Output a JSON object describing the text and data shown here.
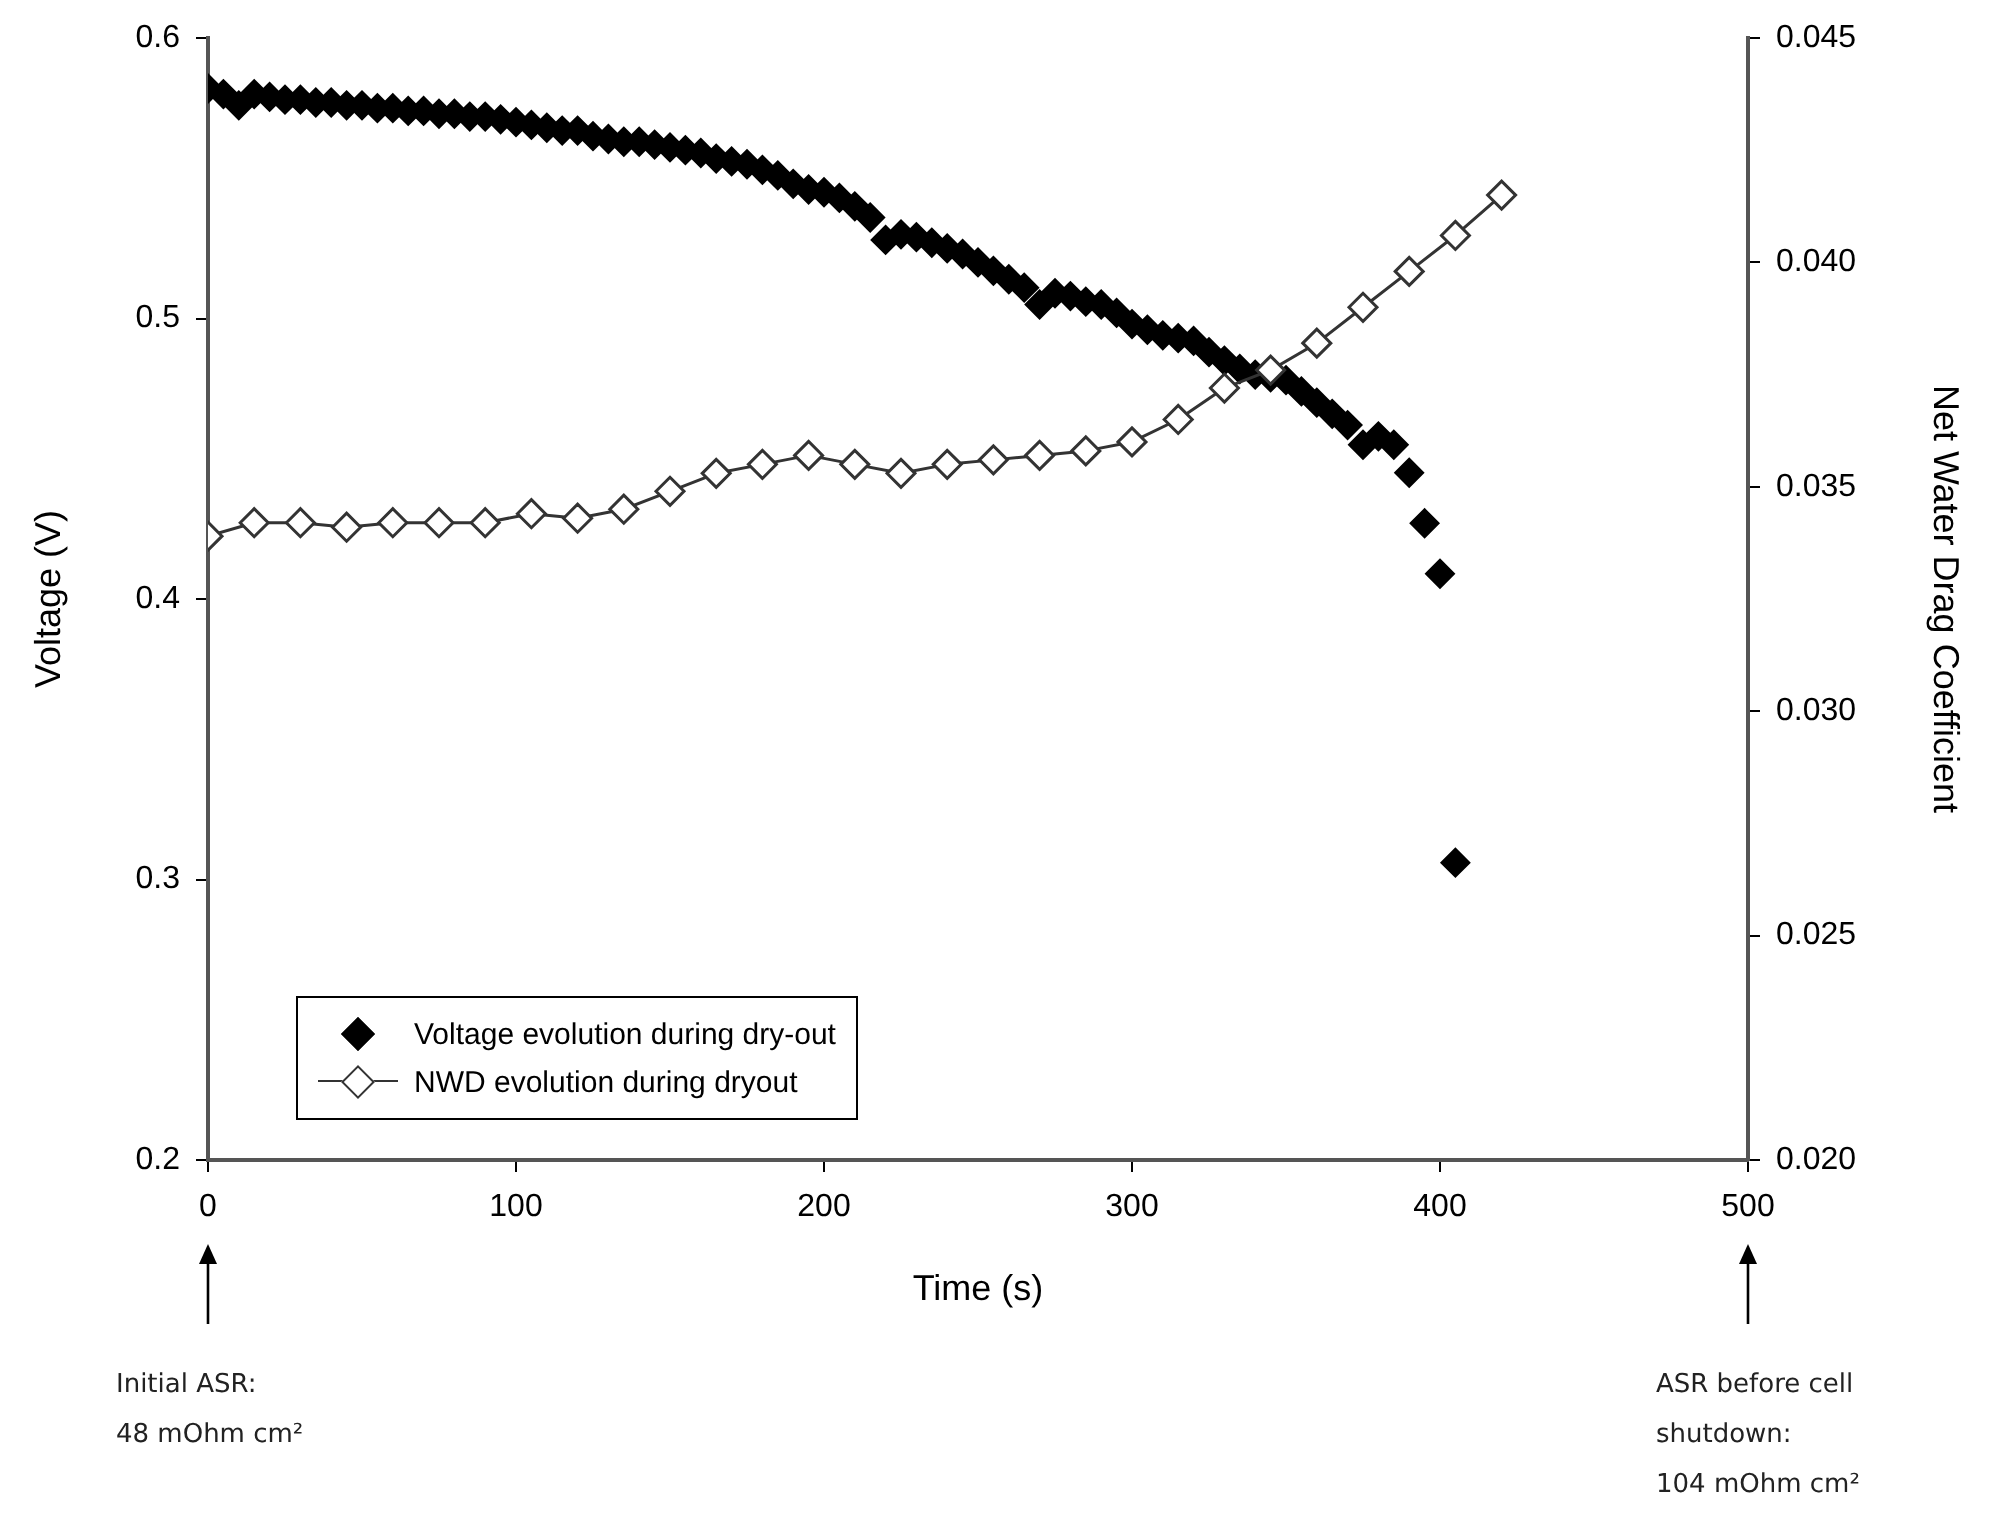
{
  "chart_data": {
    "type": "scatter",
    "xlabel": "Time (s)",
    "ylabel": "Voltage (V)",
    "y2label": "Net Water Drag Coefficient",
    "xlim": [
      0,
      500
    ],
    "xticks": [
      0,
      100,
      200,
      300,
      400,
      500
    ],
    "ylim": [
      0.2,
      0.6
    ],
    "yticks": [
      0.2,
      0.3,
      0.4,
      0.5,
      0.6
    ],
    "y2lim": [
      0.02,
      0.045
    ],
    "y2ticks": [
      {
        "value": 0.02,
        "label": "0.020"
      },
      {
        "value": 0.025,
        "label": "0.025"
      },
      {
        "value": 0.03,
        "label": "0.030"
      },
      {
        "value": 0.035,
        "label": "0.035"
      },
      {
        "value": 0.04,
        "label": "0.040"
      },
      {
        "value": 0.045,
        "label": "0.045"
      }
    ],
    "grid": false,
    "legend": "bottom left",
    "marker": "diamond",
    "series": [
      {
        "name": "Voltage evolution during dry-out",
        "type": "scatter",
        "color": "#000000",
        "x": [
          0,
          5,
          10,
          15,
          20,
          25,
          30,
          35,
          40,
          45,
          50,
          55,
          60,
          65,
          70,
          75,
          80,
          85,
          90,
          95,
          100,
          105,
          110,
          115,
          120,
          125,
          130,
          135,
          140,
          145,
          150,
          155,
          160,
          165,
          170,
          175,
          180,
          185,
          190,
          195,
          200,
          205,
          210,
          215,
          220,
          225,
          230,
          235,
          240,
          245,
          250,
          255,
          260,
          265,
          270,
          275,
          280,
          285,
          290,
          295,
          300,
          305,
          310,
          315,
          320,
          325,
          330,
          335,
          340,
          345,
          350,
          355,
          360,
          365,
          370,
          375,
          380,
          385,
          390,
          395,
          400,
          405
        ],
        "values": [
          0.582,
          0.58,
          0.576,
          0.58,
          0.579,
          0.578,
          0.578,
          0.577,
          0.577,
          0.576,
          0.576,
          0.575,
          0.575,
          0.574,
          0.574,
          0.573,
          0.573,
          0.572,
          0.572,
          0.571,
          0.57,
          0.569,
          0.568,
          0.567,
          0.567,
          0.565,
          0.564,
          0.563,
          0.563,
          0.562,
          0.561,
          0.56,
          0.559,
          0.557,
          0.556,
          0.555,
          0.553,
          0.551,
          0.548,
          0.546,
          0.545,
          0.543,
          0.54,
          0.536,
          0.528,
          0.53,
          0.529,
          0.527,
          0.525,
          0.523,
          0.52,
          0.517,
          0.514,
          0.511,
          0.505,
          0.509,
          0.508,
          0.506,
          0.505,
          0.502,
          0.498,
          0.496,
          0.494,
          0.493,
          0.492,
          0.488,
          0.485,
          0.482,
          0.48,
          0.479,
          0.478,
          0.474,
          0.47,
          0.466,
          0.462,
          0.455,
          0.458,
          0.455,
          0.445,
          0.427,
          0.409,
          0.306
        ]
      },
      {
        "name": "NWD evolution during dryout",
        "type": "line",
        "axis": "y2",
        "color": "#333333",
        "x": [
          0,
          15,
          30,
          45,
          60,
          75,
          90,
          105,
          120,
          135,
          150,
          165,
          180,
          195,
          210,
          225,
          240,
          255,
          270,
          285,
          300,
          315,
          330,
          345,
          360,
          375,
          390,
          405,
          420
        ],
        "values": [
          0.0339,
          0.0342,
          0.0342,
          0.0341,
          0.0342,
          0.0342,
          0.0342,
          0.0344,
          0.0343,
          0.0345,
          0.0349,
          0.0353,
          0.0355,
          0.0357,
          0.0355,
          0.0353,
          0.0355,
          0.0356,
          0.0357,
          0.0358,
          0.036,
          0.0365,
          0.0372,
          0.0376,
          0.0382,
          0.039,
          0.0398,
          0.0406,
          0.0415
        ]
      }
    ],
    "annotations": [
      "Initial ASR:\n48 mOhm cm²",
      "ASR before cell\nshutdown:\n104 mOhm cm²"
    ]
  }
}
